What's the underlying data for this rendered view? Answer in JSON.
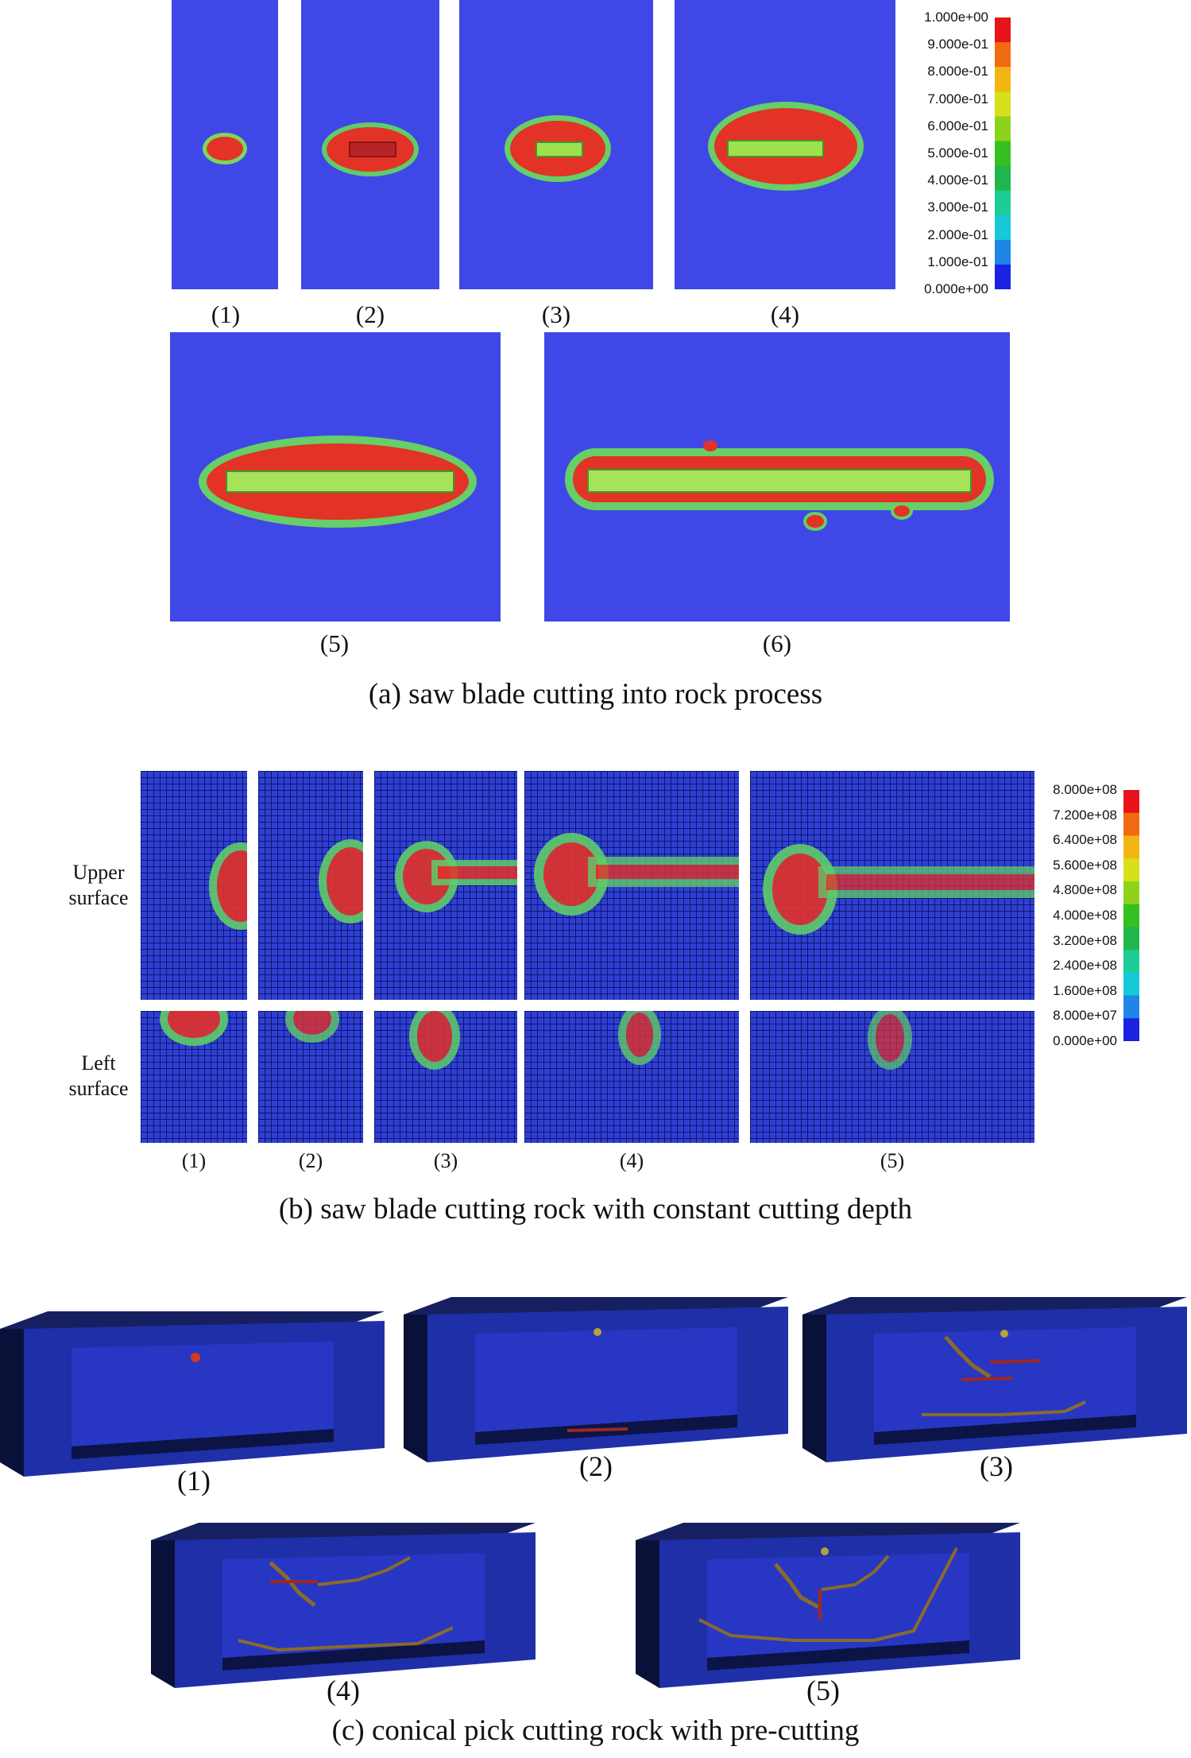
{
  "section_a": {
    "colorbar_ticks": [
      "1.000e+00",
      "9.000e-01",
      "8.000e-01",
      "7.000e-01",
      "6.000e-01",
      "5.000e-01",
      "4.000e-01",
      "3.000e-01",
      "2.000e-01",
      "1.000e-01",
      "0.000e+00"
    ],
    "colorbar_colors": [
      "#e8141b",
      "#f06a12",
      "#f3b512",
      "#d7e018",
      "#8fd21c",
      "#36c01f",
      "#1fb64c",
      "#1dcc96",
      "#17c9d8",
      "#1d86e6",
      "#1a23e0"
    ],
    "panel_labels": [
      "(1)",
      "(2)",
      "(3)",
      "(4)",
      "(5)",
      "(6)"
    ],
    "caption": "(a) saw blade cutting into rock process"
  },
  "section_b": {
    "colorbar_ticks": [
      "8.000e+08",
      "7.200e+08",
      "6.400e+08",
      "5.600e+08",
      "4.800e+08",
      "4.000e+08",
      "3.200e+08",
      "2.400e+08",
      "1.600e+08",
      "8.000e+07",
      "0.000e+00"
    ],
    "row_labels": [
      "Upper surface",
      "Left surface"
    ],
    "panel_labels": [
      "(1)",
      "(2)",
      "(3)",
      "(4)",
      "(5)"
    ],
    "caption": "(b) saw blade cutting rock with constant cutting depth"
  },
  "section_c": {
    "panel_labels": [
      "(1)",
      "(2)",
      "(3)",
      "(4)",
      "(5)"
    ],
    "caption": "(c) conical pick cutting rock with pre-cutting"
  }
}
